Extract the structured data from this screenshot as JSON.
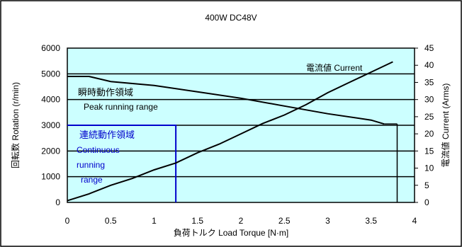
{
  "chart_data": {
    "type": "line",
    "title": "400W  DC48V",
    "xlabel": "負荷トルク Load Torque [N·m]",
    "ylabel": "回転数 Rotation (r/min)",
    "y2label": "電流値 Current (Arms)",
    "xlim": [
      0,
      4
    ],
    "ylim": [
      0,
      6000
    ],
    "y2lim": [
      0,
      45
    ],
    "x_ticks": [
      "0",
      "0.5",
      "1",
      "1.5",
      "2",
      "2.5",
      "3",
      "3.5",
      "4"
    ],
    "y_ticks": [
      "0",
      "1000",
      "2000",
      "3000",
      "4000",
      "5000",
      "6000"
    ],
    "y2_ticks": [
      "0",
      "5",
      "10",
      "15",
      "20",
      "25",
      "30",
      "35",
      "40",
      "45"
    ],
    "plot_background": "#ccffff",
    "series": [
      {
        "name": "Rotation",
        "axis": "left",
        "color": "#000000",
        "x": [
          0,
          0.25,
          0.5,
          1.0,
          1.5,
          2.0,
          2.5,
          3.0,
          3.5,
          3.65
        ],
        "y": [
          4900,
          4900,
          4700,
          4550,
          4300,
          4050,
          3750,
          3450,
          3200,
          3050
        ]
      },
      {
        "name": "Current",
        "axis": "right",
        "color": "#000000",
        "x": [
          0,
          0.25,
          0.5,
          0.75,
          1.0,
          1.25,
          1.5,
          1.75,
          2.0,
          2.25,
          2.5,
          2.75,
          3.0,
          3.25,
          3.5,
          3.75
        ],
        "y": [
          0.5,
          2.5,
          5,
          7,
          9.5,
          11.5,
          14.5,
          17,
          20,
          23,
          25.5,
          28.5,
          32,
          35,
          38,
          41
        ]
      }
    ],
    "annotations": {
      "peak_jp": "瞬時動作領域",
      "peak_en": "Peak running range",
      "continuous_jp": "連続動作領域",
      "continuous_en_1": "Continuous",
      "continuous_en_2": "running",
      "continuous_en_3": "range",
      "current_label": "電流値 Current",
      "annotation_color": "#0000cc"
    },
    "continuous_region": {
      "torque_max": 1.25,
      "speed_max": 3000,
      "color": "#0000cc"
    },
    "peak_boundary_torque": 3.8,
    "grid": true,
    "legend": "none"
  }
}
